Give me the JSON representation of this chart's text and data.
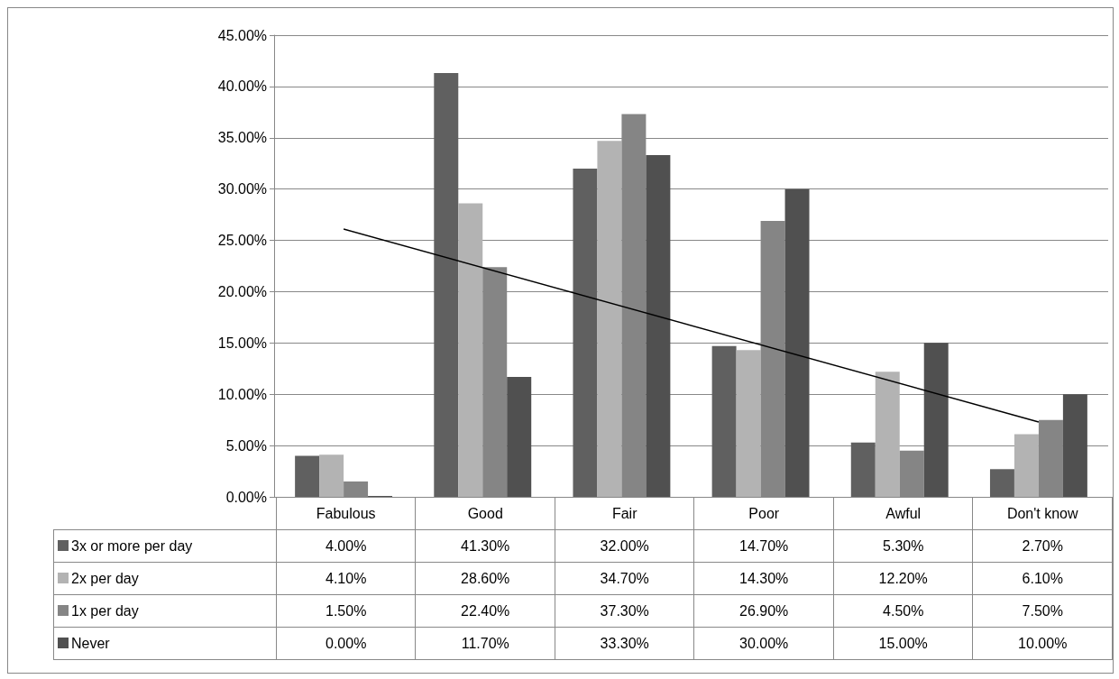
{
  "chart_data": {
    "type": "bar",
    "categories": [
      "Fabulous",
      "Good",
      "Fair",
      "Poor",
      "Awful",
      "Don't know"
    ],
    "series": [
      {
        "name": "3x or more per day",
        "color": "#606060",
        "values": [
          4.0,
          41.3,
          32.0,
          14.7,
          5.3,
          2.7
        ],
        "value_labels": [
          "4.00%",
          "41.30%",
          "32.00%",
          "14.70%",
          "5.30%",
          "2.70%"
        ]
      },
      {
        "name": "2x per day",
        "color": "#b3b3b3",
        "values": [
          4.1,
          28.6,
          34.7,
          14.3,
          12.2,
          6.1
        ],
        "value_labels": [
          "4.10%",
          "28.60%",
          "34.70%",
          "14.30%",
          "12.20%",
          "6.10%"
        ]
      },
      {
        "name": "1x per day",
        "color": "#858585",
        "values": [
          1.5,
          22.4,
          37.3,
          26.9,
          4.5,
          7.5
        ],
        "value_labels": [
          "1.50%",
          "22.40%",
          "37.30%",
          "26.90%",
          "4.50%",
          "7.50%"
        ]
      },
      {
        "name": "Never",
        "color": "#505050",
        "values": [
          0.0,
          11.7,
          33.3,
          30.0,
          15.0,
          10.0
        ],
        "value_labels": [
          "0.00%",
          "11.70%",
          "33.30%",
          "30.00%",
          "15.00%",
          "10.00%"
        ]
      },
      {
        "type": "line",
        "color": "#000000",
        "x": [
          "Fabulous",
          "Don't know"
        ],
        "values": [
          26.1,
          7.3
        ]
      }
    ],
    "ylim": [
      0,
      45
    ],
    "yticks": [
      {
        "value": 0,
        "label": "0.00%"
      },
      {
        "value": 5,
        "label": "5.00%"
      },
      {
        "value": 10,
        "label": "10.00%"
      },
      {
        "value": 15,
        "label": "15.00%"
      },
      {
        "value": 20,
        "label": "20.00%"
      },
      {
        "value": 25,
        "label": "25.00%"
      },
      {
        "value": 30,
        "label": "30.00%"
      },
      {
        "value": 35,
        "label": "35.00%"
      },
      {
        "value": 40,
        "label": "40.00%"
      },
      {
        "value": 45,
        "label": "45.00%"
      }
    ],
    "grid": "y",
    "legend": "bottom",
    "marker": "none",
    "line_style": "solid"
  }
}
